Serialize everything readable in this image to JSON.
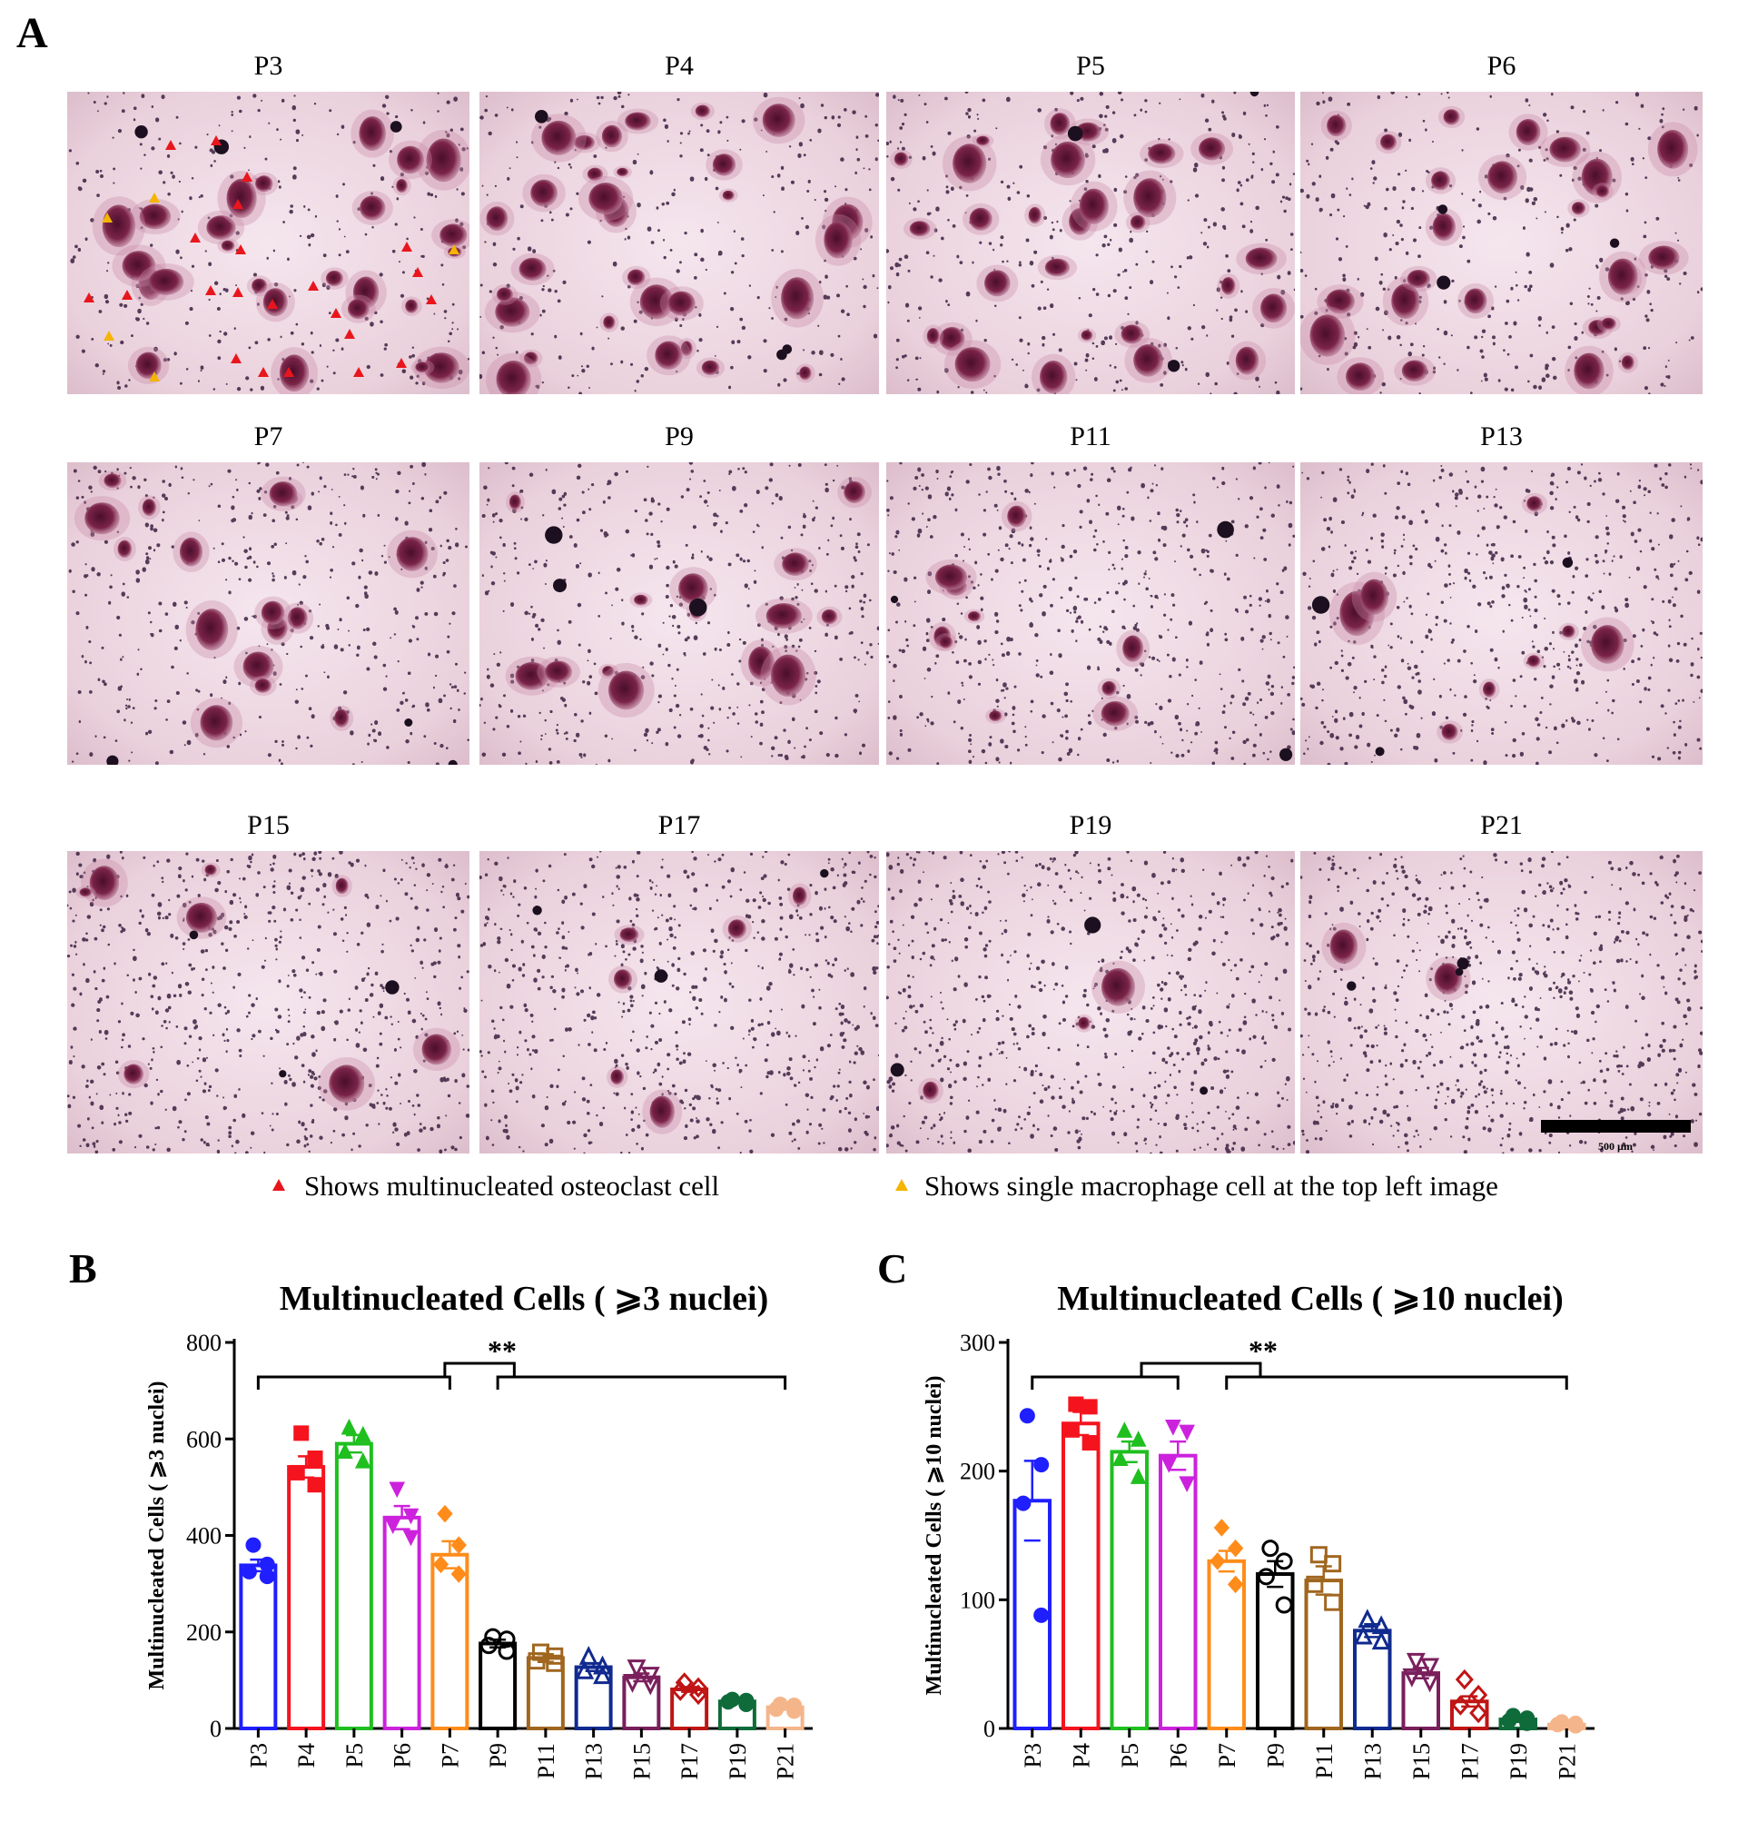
{
  "panel_letters": {
    "a": "A",
    "b": "B",
    "c": "C"
  },
  "micrographs": [
    {
      "label": "P3",
      "density": 0.25,
      "big_cells": 26
    },
    {
      "label": "P4",
      "density": 0.25,
      "big_cells": 30
    },
    {
      "label": "P5",
      "density": 0.35,
      "big_cells": 28
    },
    {
      "label": "P6",
      "density": 0.3,
      "big_cells": 26
    },
    {
      "label": "P7",
      "density": 0.45,
      "big_cells": 16
    },
    {
      "label": "P9",
      "density": 0.55,
      "big_cells": 14
    },
    {
      "label": "P11",
      "density": 0.7,
      "big_cells": 10
    },
    {
      "label": "P13",
      "density": 0.7,
      "big_cells": 8
    },
    {
      "label": "P15",
      "density": 0.85,
      "big_cells": 8
    },
    {
      "label": "P17",
      "density": 0.85,
      "big_cells": 6
    },
    {
      "label": "P19",
      "density": 0.95,
      "big_cells": 3
    },
    {
      "label": "P21",
      "density": 1.0,
      "big_cells": 2
    }
  ],
  "scale_bar_label": "500 µm",
  "legend": {
    "red_text": "Shows multinucleated osteoclast cell",
    "yellow_text": "Shows single macrophage cell at the top left image",
    "red_color": "#e8161c",
    "yellow_color": "#f4b400"
  },
  "chart_data": [
    {
      "panel": "B",
      "type": "bar",
      "title": "Multinucleated Cells ( ⩾3 nuclei)",
      "ylabel": "Multinucleated Cells ( ⩾3 nuclei)",
      "xlabel": "",
      "ylim": [
        0,
        800
      ],
      "yticks": [
        0,
        200,
        400,
        600,
        800
      ],
      "categories": [
        "P3",
        "P4",
        "P5",
        "P6",
        "P7",
        "P9",
        "P11",
        "P13",
        "P15",
        "P17",
        "P19",
        "P21"
      ],
      "values": [
        338,
        542,
        590,
        437,
        360,
        176,
        146,
        127,
        106,
        81,
        56,
        44
      ],
      "errors": [
        12,
        22,
        18,
        24,
        28,
        8,
        8,
        8,
        8,
        5,
        3,
        5
      ],
      "points": [
        [
          380,
          340,
          325,
          315
        ],
        [
          612,
          560,
          530,
          505
        ],
        [
          625,
          610,
          575,
          555
        ],
        [
          495,
          440,
          420,
          395
        ],
        [
          445,
          380,
          340,
          320
        ],
        [
          190,
          185,
          172,
          160
        ],
        [
          158,
          150,
          140,
          135
        ],
        [
          150,
          130,
          120,
          110
        ],
        [
          125,
          110,
          95,
          90
        ],
        [
          95,
          85,
          78,
          70
        ],
        [
          60,
          58,
          55,
          50
        ],
        [
          50,
          48,
          40,
          36
        ]
      ],
      "colors": [
        "#1f1fff",
        "#f5141e",
        "#1fbf1f",
        "#cc22dd",
        "#ff8c1a",
        "#000000",
        "#a0661f",
        "#102a8f",
        "#7a1f5c",
        "#c01515",
        "#0f6b3a",
        "#f5b58a"
      ],
      "markers": [
        "circle",
        "square",
        "triangle-up",
        "triangle-down",
        "diamond",
        "circle-open",
        "square-open",
        "triangle-open",
        "triangle-down-open",
        "diamond-open",
        "circle",
        "circle"
      ],
      "significance": "**"
    },
    {
      "panel": "C",
      "type": "bar",
      "title": "Multinucleated Cells ( ⩾10 nuclei)",
      "ylabel": "Multinucleated Cells ( ⩾10 nuclei)",
      "xlabel": "",
      "ylim": [
        0,
        300
      ],
      "yticks": [
        0,
        100,
        200,
        300
      ],
      "categories": [
        "P3",
        "P4",
        "P5",
        "P6",
        "P7",
        "P9",
        "P11",
        "P13",
        "P15",
        "P17",
        "P19",
        "P21"
      ],
      "values": [
        177,
        237,
        215,
        212,
        130,
        120,
        115,
        76,
        43,
        21,
        7,
        3
      ],
      "errors": [
        31,
        9,
        8,
        11,
        8,
        10,
        11,
        5,
        4,
        4,
        2,
        1
      ],
      "points": [
        [
          243,
          205,
          175,
          88
        ],
        [
          252,
          250,
          232,
          222
        ],
        [
          232,
          225,
          210,
          196
        ],
        [
          234,
          230,
          205,
          190
        ],
        [
          156,
          140,
          130,
          112
        ],
        [
          140,
          130,
          118,
          96
        ],
        [
          135,
          128,
          112,
          98
        ],
        [
          85,
          80,
          72,
          68
        ],
        [
          52,
          48,
          40,
          36
        ],
        [
          38,
          26,
          18,
          12
        ],
        [
          10,
          8,
          6,
          4
        ],
        [
          5,
          4,
          3,
          2
        ]
      ],
      "colors": [
        "#1f1fff",
        "#f5141e",
        "#1fbf1f",
        "#cc22dd",
        "#ff8c1a",
        "#000000",
        "#a0661f",
        "#102a8f",
        "#7a1f5c",
        "#c01515",
        "#0f6b3a",
        "#f5b58a"
      ],
      "markers": [
        "circle",
        "square",
        "triangle-up",
        "triangle-down",
        "diamond",
        "circle-open",
        "square-open",
        "triangle-open",
        "triangle-down-open",
        "diamond-open",
        "circle",
        "circle"
      ],
      "significance": "**"
    }
  ]
}
